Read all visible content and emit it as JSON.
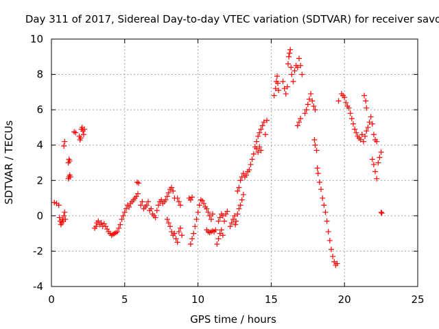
{
  "chart_data": {
    "type": "scatter",
    "title": "Day 311 of 2017, Sidereal Day-to-day VTEC variation (SDTVAR) for receiver savo",
    "xlabel": "GPS time / hours",
    "ylabel": "SDTVAR / TECUs",
    "xlim": [
      0,
      25
    ],
    "ylim": [
      -4,
      10
    ],
    "xticks": [
      0,
      5,
      10,
      15,
      20,
      25
    ],
    "yticks": [
      -4,
      -2,
      0,
      2,
      4,
      6,
      8,
      10
    ],
    "grid": true,
    "marker": "+",
    "series": [
      {
        "name": "SDTVAR",
        "color": "#ff0000",
        "points": [
          [
            0.2,
            0.75
          ],
          [
            0.35,
            0.7
          ],
          [
            0.5,
            0.6
          ],
          [
            0.55,
            -0.1
          ],
          [
            0.6,
            -0.3
          ],
          [
            0.65,
            -0.5
          ],
          [
            0.7,
            -0.4
          ],
          [
            0.75,
            -0.2
          ],
          [
            0.8,
            -0.3
          ],
          [
            0.85,
            0.0
          ],
          [
            0.9,
            0.2
          ],
          [
            0.95,
            -0.2
          ],
          [
            0.85,
            3.95
          ],
          [
            0.9,
            4.2
          ],
          [
            1.15,
            3.0
          ],
          [
            1.2,
            3.2
          ],
          [
            1.25,
            3.1
          ],
          [
            1.15,
            2.1
          ],
          [
            1.2,
            2.2
          ],
          [
            1.25,
            2.3
          ],
          [
            1.3,
            2.2
          ],
          [
            1.55,
            4.75
          ],
          [
            1.65,
            4.7
          ],
          [
            1.9,
            4.5
          ],
          [
            1.95,
            4.3
          ],
          [
            2.0,
            4.4
          ],
          [
            2.05,
            4.9
          ],
          [
            2.1,
            5.0
          ],
          [
            2.15,
            4.8
          ],
          [
            2.2,
            4.6
          ],
          [
            2.25,
            4.9
          ],
          [
            2.95,
            -0.7
          ],
          [
            3.05,
            -0.6
          ],
          [
            3.1,
            -0.4
          ],
          [
            3.2,
            -0.3
          ],
          [
            3.3,
            -0.5
          ],
          [
            3.4,
            -0.4
          ],
          [
            3.5,
            -0.6
          ],
          [
            3.6,
            -0.45
          ],
          [
            3.7,
            -0.6
          ],
          [
            3.8,
            -0.75
          ],
          [
            3.9,
            -0.9
          ],
          [
            4.0,
            -1.0
          ],
          [
            4.1,
            -1.1
          ],
          [
            4.2,
            -1.05
          ],
          [
            4.3,
            -1.0
          ],
          [
            4.4,
            -0.95
          ],
          [
            4.5,
            -0.9
          ],
          [
            4.6,
            -0.7
          ],
          [
            4.7,
            -0.5
          ],
          [
            4.8,
            -0.2
          ],
          [
            4.9,
            0.0
          ],
          [
            5.0,
            0.2
          ],
          [
            5.1,
            0.4
          ],
          [
            5.2,
            0.6
          ],
          [
            5.3,
            0.5
          ],
          [
            5.4,
            0.7
          ],
          [
            5.5,
            0.8
          ],
          [
            5.6,
            0.9
          ],
          [
            5.7,
            1.0
          ],
          [
            5.8,
            1.1
          ],
          [
            5.9,
            1.25
          ],
          [
            5.85,
            1.9
          ],
          [
            5.95,
            1.85
          ],
          [
            6.1,
            0.6
          ],
          [
            6.2,
            0.8
          ],
          [
            6.3,
            0.4
          ],
          [
            6.4,
            0.5
          ],
          [
            6.5,
            0.6
          ],
          [
            6.6,
            0.8
          ],
          [
            6.7,
            0.3
          ],
          [
            6.8,
            0.4
          ],
          [
            6.9,
            0.1
          ],
          [
            7.0,
            0.0
          ],
          [
            7.1,
            -0.1
          ],
          [
            7.2,
            0.3
          ],
          [
            7.3,
            0.6
          ],
          [
            7.4,
            0.8
          ],
          [
            7.5,
            0.9
          ],
          [
            7.6,
            0.7
          ],
          [
            7.7,
            0.8
          ],
          [
            7.8,
            0.9
          ],
          [
            7.9,
            1.1
          ],
          [
            8.0,
            1.3
          ],
          [
            8.1,
            1.5
          ],
          [
            8.2,
            1.6
          ],
          [
            8.3,
            1.4
          ],
          [
            8.4,
            1.0
          ],
          [
            7.9,
            -0.2
          ],
          [
            8.0,
            -0.4
          ],
          [
            8.1,
            -0.6
          ],
          [
            8.2,
            -0.9
          ],
          [
            8.3,
            -1.1
          ],
          [
            8.4,
            -1.0
          ],
          [
            8.5,
            -1.3
          ],
          [
            8.6,
            -1.5
          ],
          [
            8.7,
            -0.9
          ],
          [
            8.8,
            -0.7
          ],
          [
            8.9,
            -1.1
          ],
          [
            8.6,
            1.0
          ],
          [
            8.7,
            0.8
          ],
          [
            8.8,
            0.6
          ],
          [
            9.4,
            1.0
          ],
          [
            9.5,
            0.9
          ],
          [
            9.6,
            1.05
          ],
          [
            9.5,
            -1.6
          ],
          [
            9.6,
            -1.3
          ],
          [
            9.7,
            -1.0
          ],
          [
            9.8,
            -0.6
          ],
          [
            9.9,
            -0.2
          ],
          [
            10.0,
            0.2
          ],
          [
            10.1,
            0.6
          ],
          [
            10.2,
            0.9
          ],
          [
            10.3,
            0.85
          ],
          [
            10.4,
            0.7
          ],
          [
            10.5,
            0.5
          ],
          [
            10.6,
            0.4
          ],
          [
            10.7,
            0.2
          ],
          [
            10.8,
            0.0
          ],
          [
            10.9,
            -0.2
          ],
          [
            11.0,
            0.1
          ],
          [
            10.6,
            -0.8
          ],
          [
            10.7,
            -0.9
          ],
          [
            10.8,
            -0.95
          ],
          [
            10.9,
            -0.9
          ],
          [
            11.0,
            -0.85
          ],
          [
            11.1,
            -0.9
          ],
          [
            11.2,
            -0.8
          ],
          [
            11.3,
            -1.6
          ],
          [
            11.4,
            -1.3
          ],
          [
            11.5,
            -1.0
          ],
          [
            11.6,
            -0.8
          ],
          [
            11.7,
            -1.1
          ],
          [
            11.4,
            -0.3
          ],
          [
            11.5,
            -0.1
          ],
          [
            11.6,
            0.1
          ],
          [
            11.7,
            0.0
          ],
          [
            11.8,
            -0.3
          ],
          [
            11.9,
            0.1
          ],
          [
            12.0,
            0.25
          ],
          [
            12.2,
            -0.6
          ],
          [
            12.3,
            -0.4
          ],
          [
            12.4,
            -0.2
          ],
          [
            12.5,
            0.0
          ],
          [
            12.55,
            -0.5
          ],
          [
            12.6,
            -0.3
          ],
          [
            12.7,
            0.1
          ],
          [
            12.8,
            0.4
          ],
          [
            12.9,
            0.6
          ],
          [
            13.0,
            0.9
          ],
          [
            13.1,
            1.2
          ],
          [
            12.7,
            1.4
          ],
          [
            12.8,
            1.6
          ],
          [
            12.9,
            2.0
          ],
          [
            13.0,
            2.2
          ],
          [
            13.1,
            2.4
          ],
          [
            13.2,
            2.2
          ],
          [
            13.3,
            2.3
          ],
          [
            13.4,
            2.5
          ],
          [
            13.5,
            2.6
          ],
          [
            13.6,
            2.9
          ],
          [
            13.7,
            3.2
          ],
          [
            13.8,
            3.5
          ],
          [
            13.9,
            3.9
          ],
          [
            14.0,
            4.2
          ],
          [
            14.1,
            4.5
          ],
          [
            14.2,
            4.7
          ],
          [
            14.3,
            4.9
          ],
          [
            14.4,
            5.1
          ],
          [
            14.5,
            5.3
          ],
          [
            14.6,
            4.6
          ],
          [
            14.7,
            5.4
          ],
          [
            14.0,
            3.8
          ],
          [
            14.1,
            3.6
          ],
          [
            14.2,
            3.9
          ],
          [
            14.3,
            3.7
          ],
          [
            15.2,
            6.8
          ],
          [
            15.3,
            7.2
          ],
          [
            15.35,
            7.6
          ],
          [
            15.4,
            7.9
          ],
          [
            15.45,
            7.5
          ],
          [
            15.5,
            7.1
          ],
          [
            15.8,
            7.6
          ],
          [
            15.9,
            7.2
          ],
          [
            16.0,
            6.9
          ],
          [
            16.1,
            7.3
          ],
          [
            16.15,
            8.6
          ],
          [
            16.2,
            9.0
          ],
          [
            16.25,
            9.2
          ],
          [
            16.3,
            9.4
          ],
          [
            16.35,
            8.4
          ],
          [
            16.4,
            8.0
          ],
          [
            16.5,
            7.6
          ],
          [
            16.6,
            8.2
          ],
          [
            16.7,
            8.5
          ],
          [
            16.8,
            8.4
          ],
          [
            16.9,
            8.9
          ],
          [
            17.0,
            8.5
          ],
          [
            17.1,
            8.0
          ],
          [
            16.8,
            5.1
          ],
          [
            16.9,
            5.3
          ],
          [
            17.0,
            5.5
          ],
          [
            17.3,
            5.8
          ],
          [
            17.4,
            6.0
          ],
          [
            17.5,
            6.3
          ],
          [
            17.6,
            6.6
          ],
          [
            17.7,
            6.9
          ],
          [
            17.8,
            6.5
          ],
          [
            17.9,
            6.2
          ],
          [
            18.0,
            6.0
          ],
          [
            17.95,
            4.3
          ],
          [
            18.0,
            4.0
          ],
          [
            18.1,
            3.7
          ],
          [
            18.15,
            2.7
          ],
          [
            18.2,
            2.4
          ],
          [
            18.3,
            1.9
          ],
          [
            18.4,
            1.5
          ],
          [
            18.5,
            1.0
          ],
          [
            18.6,
            0.6
          ],
          [
            18.7,
            0.2
          ],
          [
            18.8,
            -0.3
          ],
          [
            18.9,
            -0.9
          ],
          [
            19.0,
            -1.4
          ],
          [
            19.1,
            -1.9
          ],
          [
            19.2,
            -2.3
          ],
          [
            19.3,
            -2.6
          ],
          [
            19.4,
            -2.8
          ],
          [
            19.5,
            -2.7
          ],
          [
            19.6,
            6.5
          ],
          [
            19.8,
            6.9
          ],
          [
            19.9,
            6.8
          ],
          [
            20.0,
            6.7
          ],
          [
            20.1,
            6.4
          ],
          [
            20.2,
            6.2
          ],
          [
            20.3,
            6.1
          ],
          [
            20.4,
            5.8
          ],
          [
            20.5,
            5.5
          ],
          [
            20.6,
            5.2
          ],
          [
            20.7,
            4.9
          ],
          [
            20.8,
            4.7
          ],
          [
            20.9,
            4.5
          ],
          [
            21.0,
            4.4
          ],
          [
            21.1,
            4.3
          ],
          [
            21.2,
            4.6
          ],
          [
            21.3,
            4.2
          ],
          [
            21.4,
            4.5
          ],
          [
            21.5,
            4.8
          ],
          [
            21.6,
            5.0
          ],
          [
            21.7,
            5.3
          ],
          [
            21.8,
            5.6
          ],
          [
            21.9,
            5.2
          ],
          [
            22.0,
            4.6
          ],
          [
            22.1,
            4.3
          ],
          [
            22.2,
            4.2
          ],
          [
            21.35,
            6.8
          ],
          [
            21.45,
            6.5
          ],
          [
            21.5,
            6.1
          ],
          [
            21.9,
            3.2
          ],
          [
            22.0,
            2.9
          ],
          [
            22.1,
            2.5
          ],
          [
            22.2,
            2.1
          ],
          [
            22.3,
            3.0
          ],
          [
            22.4,
            3.3
          ],
          [
            22.5,
            3.6
          ],
          [
            22.5,
            0.2
          ],
          [
            22.55,
            0.15
          ]
        ]
      }
    ]
  }
}
